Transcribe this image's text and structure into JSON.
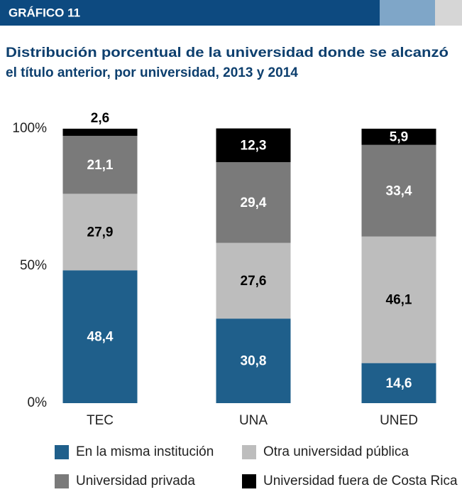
{
  "chart_data": {
    "type": "stacked_bar",
    "label": "GRÁFICO 11",
    "title": [
      "Distribución porcentual de la universidad donde se alcanzó",
      "el título anterior, por universidad, 2013 y 2014"
    ],
    "categories": [
      "TEC",
      "UNA",
      "UNED"
    ],
    "series": [
      {
        "name": "En la misma institución",
        "color": "#1f5f8b",
        "values": [
          48.4,
          30.8,
          14.6
        ],
        "value_labels": [
          "48,4",
          "30,8",
          "14,6"
        ]
      },
      {
        "name": "Otra universidad pública",
        "color": "#bdbdbd",
        "values": [
          27.9,
          27.6,
          46.1
        ],
        "value_labels": [
          "27,9",
          "27,6",
          "46,1"
        ]
      },
      {
        "name": "Universidad privada",
        "color": "#7a7a7a",
        "values": [
          21.1,
          29.4,
          33.4
        ],
        "value_labels": [
          "21,1",
          "29,4",
          "33,4"
        ]
      },
      {
        "name": "Universidad fuera de Costa Rica",
        "color": "#000000",
        "values": [
          2.6,
          12.3,
          5.9
        ],
        "value_labels": [
          "2,6",
          "12,3",
          "5,9"
        ]
      }
    ],
    "ylim": [
      0,
      100
    ],
    "yticks": [
      {
        "value": 0,
        "label": "0%"
      },
      {
        "value": 50,
        "label": "50%"
      },
      {
        "value": 100,
        "label": "100%"
      }
    ],
    "grid": false
  }
}
